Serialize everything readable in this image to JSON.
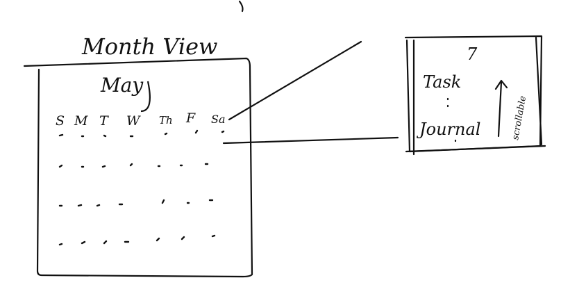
{
  "sketch": {
    "title": "Month View",
    "calendar": {
      "month": "May",
      "weekdays": [
        "S",
        "M",
        "T",
        "W",
        "Th",
        "F",
        "Sa"
      ]
    },
    "day_detail": {
      "day_number": "7",
      "task_label": "Task",
      "journal_label": "Journal",
      "scroll_note": "scrollable"
    }
  }
}
